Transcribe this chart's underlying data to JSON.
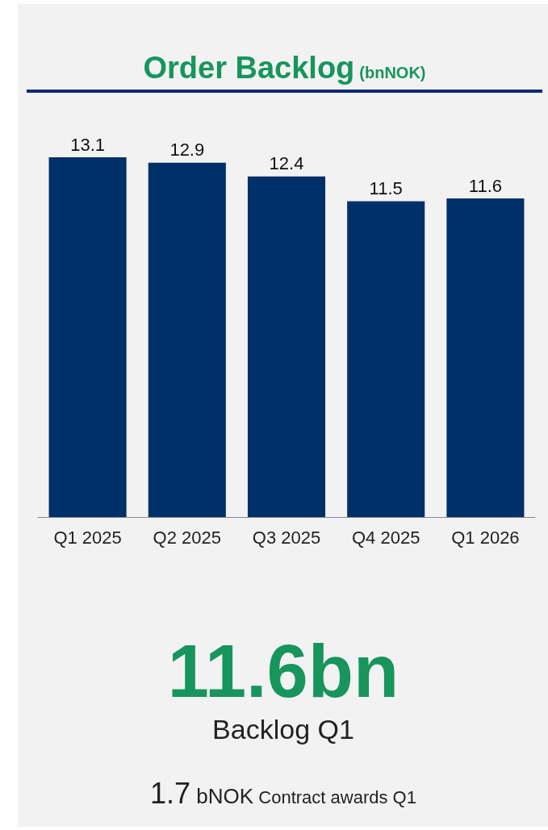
{
  "chart_data": {
    "type": "bar",
    "title": "Order Backlog",
    "subtitle": "(bnNOK)",
    "categories": [
      "Q1 2025",
      "Q2 2025",
      "Q3 2025",
      "Q4 2025",
      "Q1 2026"
    ],
    "values": [
      13.1,
      12.9,
      12.4,
      11.5,
      11.6
    ],
    "color": "#003069",
    "data_labels": true,
    "annotations": [
      "11.6bn",
      "Backlog Q1",
      "1.7 bNOK Contract awards Q1"
    ]
  }
}
